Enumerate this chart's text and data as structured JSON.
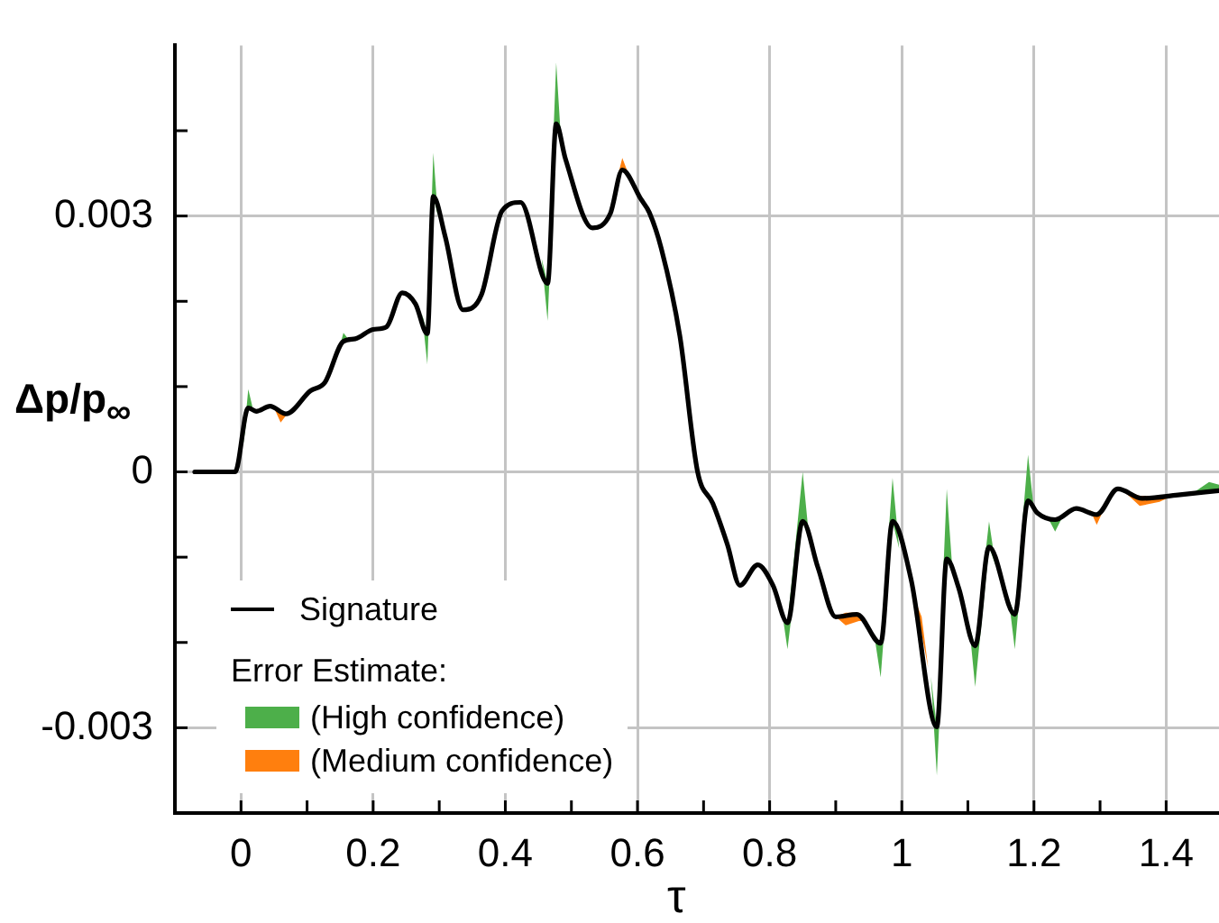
{
  "chart_data": {
    "type": "line",
    "xlabel": "τ",
    "ylabel": "Δp/p$_{∞}$",
    "legend_title": "Error Estimate:",
    "legend": "bottom left",
    "grid": true,
    "line_style": "solid",
    "marker": "none",
    "xlim": [
      -0.1,
      1.48
    ],
    "xticks": [
      0,
      {
        "value": 0.1,
        "label": null
      },
      0.2,
      {
        "value": 0.3,
        "label": null
      },
      0.4,
      {
        "value": 0.5,
        "label": null
      },
      0.6,
      {
        "value": 0.7,
        "label": null
      },
      0.8,
      {
        "value": 0.9,
        "label": null
      },
      1,
      {
        "value": 1.1,
        "label": null
      },
      1.2,
      {
        "value": 1.3,
        "label": null
      },
      1.4
    ],
    "ylim": [
      -0.004,
      0.005
    ],
    "yticks": [
      {
        "value": -0.004,
        "label": null
      },
      -0.003,
      {
        "value": -0.002,
        "label": null
      },
      {
        "value": -0.001,
        "label": null
      },
      0,
      {
        "value": 0.001,
        "label": null
      },
      {
        "value": 0.002,
        "label": null
      },
      0.003,
      {
        "value": 0.004,
        "label": null
      }
    ],
    "series": [
      {
        "name": "Signature",
        "color": "#000000",
        "x": [
          -0.07,
          -0.009,
          0.011,
          0.023,
          0.044,
          0.068,
          0.105,
          0.127,
          0.155,
          0.173,
          0.2,
          0.22,
          0.244,
          0.264,
          0.282,
          0.291,
          0.309,
          0.336,
          0.364,
          0.395,
          0.423,
          0.464,
          0.477,
          0.491,
          0.532,
          0.559,
          0.577,
          0.605,
          0.618,
          0.636,
          0.664,
          0.691,
          0.714,
          0.736,
          0.755,
          0.782,
          0.805,
          0.827,
          0.85,
          0.873,
          0.9,
          0.932,
          0.968,
          0.986,
          1.014,
          1.053,
          1.068,
          1.086,
          1.111,
          1.132,
          1.171,
          1.191,
          1.205,
          1.232,
          1.264,
          1.295,
          1.327,
          1.364,
          1.418,
          1.48
        ],
        "values": [
          0,
          0,
          0.00075,
          0.00071,
          0.00077,
          0.00068,
          0.00095,
          0.00105,
          0.00153,
          0.00156,
          0.00167,
          0.0017,
          0.0021,
          0.00197,
          0.00162,
          0.00323,
          0.00276,
          0.0019,
          0.00208,
          0.00306,
          0.00316,
          0.00221,
          0.00408,
          0.00367,
          0.00286,
          0.00303,
          0.00354,
          0.0032,
          0.00304,
          0.00262,
          0.0016,
          0,
          -0.00037,
          -0.00085,
          -0.00133,
          -0.00109,
          -0.00133,
          -0.00177,
          -0.00058,
          -0.00112,
          -0.0017,
          -0.00167,
          -0.00201,
          -0.00058,
          -0.00126,
          -0.00299,
          -0.00102,
          -0.00136,
          -0.00204,
          -0.00088,
          -0.00167,
          -0.00034,
          -0.00048,
          -0.00056,
          -0.00043,
          -0.0005,
          -0.0002,
          -0.00031,
          -0.00027,
          -0.00022
        ]
      },
      {
        "name": "(High confidence)",
        "type": "area",
        "color": "#4daf4a",
        "values": [
          null,
          null,
          null,
          null,
          null,
          null,
          null,
          null,
          null,
          null,
          null,
          null,
          null,
          null,
          null,
          null,
          null,
          null,
          null,
          null,
          null,
          null,
          null,
          null,
          null,
          null,
          null,
          null,
          null,
          null,
          null,
          null,
          null,
          null,
          null,
          null,
          null,
          null,
          null,
          null
        ],
        "x": [
          0.003,
          0.011,
          0.018,
          0.147,
          0.155,
          0.163,
          0.274,
          0.282,
          0.291,
          0.298,
          0.455,
          0.464,
          0.477,
          0.485,
          0.818,
          0.827,
          0.85,
          0.86,
          0.958,
          0.968,
          0.986,
          0.996,
          1.044,
          1.053,
          1.068,
          1.077,
          1.102,
          1.111,
          1.132,
          1.142,
          1.162,
          1.171,
          1.191,
          1.2,
          1.22,
          1.232,
          1.245,
          1.44,
          1.465,
          1.48
        ],
        "lower": [
          0.0003,
          0.00075,
          0.00074,
          0.0014,
          0.00153,
          0.00155,
          0.00185,
          0.00126,
          0.00323,
          0.003,
          0.0025,
          0.00177,
          0.00408,
          0.0038,
          -0.0016,
          -0.00208,
          -0.00058,
          -0.0008,
          -0.0019,
          -0.00241,
          -0.00058,
          -0.0009,
          -0.0024,
          -0.00356,
          -0.00102,
          -0.0012,
          -0.0018,
          -0.00252,
          -0.00088,
          -0.0011,
          -0.0015,
          -0.00208,
          -0.00034,
          -0.00045,
          -0.00052,
          -0.0007,
          -0.0005,
          -0.00025,
          -0.00024,
          -0.00022
        ],
        "upper": [
          0.0003,
          0.00097,
          0.00074,
          0.0014,
          0.00163,
          0.00155,
          0.00185,
          0.00162,
          0.00374,
          0.003,
          0.0025,
          0.00221,
          0.0048,
          0.0038,
          -0.0016,
          -0.00177,
          0,
          -0.0008,
          -0.0019,
          -0.00201,
          -7e-05,
          -0.0009,
          -0.0024,
          -0.00299,
          -0.0002,
          -0.0012,
          -0.0018,
          -0.00204,
          -0.00058,
          -0.0011,
          -0.0015,
          -0.00167,
          0.0002,
          -0.00045,
          -0.00052,
          -0.00056,
          -0.0005,
          -0.00025,
          -0.00012,
          -0.00015
        ]
      },
      {
        "name": "(Medium confidence)",
        "type": "area",
        "color": "#ff7f0e",
        "values": [
          null,
          null,
          null,
          null,
          null,
          null,
          null,
          null,
          null,
          null,
          null,
          null,
          null,
          null,
          null,
          null,
          null,
          null,
          null,
          null
        ],
        "x": [
          0.05,
          0.06,
          0.07,
          0.568,
          0.577,
          0.586,
          0.9,
          0.915,
          0.935,
          0.945,
          1.02,
          1.03,
          1.04,
          1.285,
          1.295,
          1.305,
          1.335,
          1.36,
          1.39,
          1.41
        ],
        "lower": [
          0.00075,
          0.00058,
          0.00068,
          0.0034,
          0.00354,
          0.0035,
          -0.0017,
          -0.0018,
          -0.00175,
          -0.00175,
          -0.0015,
          -0.0019,
          -0.0023,
          -0.00045,
          -0.00062,
          -0.00045,
          -0.00022,
          -0.0004,
          -0.00035,
          -0.00028
        ],
        "upper": [
          0.00075,
          0.0007,
          0.00068,
          0.0034,
          0.00368,
          0.0035,
          -0.0017,
          -0.00165,
          -0.00165,
          -0.00175,
          -0.0015,
          -0.0017,
          -0.0023,
          -0.00045,
          -0.0005,
          -0.00045,
          -0.00022,
          -0.00028,
          -0.00028,
          -0.00028
        ]
      }
    ]
  }
}
